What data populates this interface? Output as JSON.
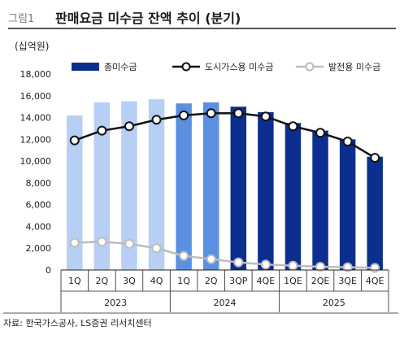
{
  "header": {
    "figure_no": "그림1",
    "title": "판매요금 미수금 잔액 추이 (분기)"
  },
  "unit": "(십억원)",
  "source": "자료: 한국가스공사, LS증권 리서치센터",
  "chart_data": {
    "type": "bar",
    "categories": [
      "1Q",
      "2Q",
      "3Q",
      "4Q",
      "1Q",
      "2Q",
      "3QP",
      "4QE",
      "1QE",
      "2QE",
      "3QE",
      "4QE"
    ],
    "year_groups": [
      {
        "label": "2023",
        "span": 4
      },
      {
        "label": "2024",
        "span": 4
      },
      {
        "label": "2025",
        "span": 4
      }
    ],
    "ylim": [
      0,
      18000
    ],
    "yticks": [
      "0",
      "2,000",
      "4,000",
      "6,000",
      "8,000",
      "10,000",
      "12,000",
      "14,000",
      "16,000",
      "18,000"
    ],
    "series": [
      {
        "name": "총미수금",
        "kind": "bar",
        "values": [
          14200,
          15400,
          15500,
          15700,
          15300,
          15400,
          15000,
          14500,
          13500,
          12800,
          12000,
          10400
        ],
        "colors": [
          "#b8cff5",
          "#b8cff5",
          "#b8cff5",
          "#b8cff5",
          "#5b8fe0",
          "#5b8fe0",
          "#0c2f8f",
          "#0c2f8f",
          "#0c2f8f",
          "#0c2f8f",
          "#0c2f8f",
          "#0c2f8f"
        ],
        "legend_color": "#0c2f8f"
      },
      {
        "name": "도시가스용 미수금",
        "kind": "line",
        "color": "#111111",
        "values": [
          11900,
          12800,
          13200,
          13800,
          14200,
          14400,
          14400,
          14100,
          13200,
          12600,
          11800,
          10300
        ]
      },
      {
        "name": "발전용 미수금",
        "kind": "line",
        "color": "#bdbdbd",
        "values": [
          2500,
          2600,
          2400,
          2000,
          1300,
          1000,
          700,
          500,
          400,
          300,
          250,
          200
        ]
      }
    ],
    "legend_position": "top"
  }
}
